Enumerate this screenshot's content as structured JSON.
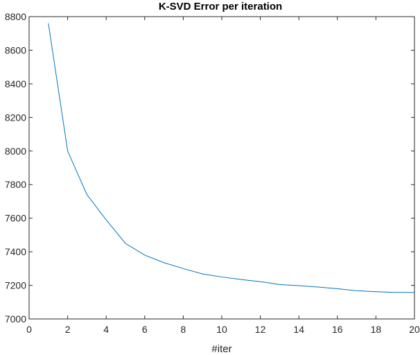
{
  "chart_data": {
    "type": "line",
    "title": "K-SVD Error per iteration",
    "xlabel": "#iter",
    "ylabel": "",
    "xlim": [
      0,
      20
    ],
    "ylim": [
      7000,
      8800
    ],
    "xticks": [
      0,
      2,
      4,
      6,
      8,
      10,
      12,
      14,
      16,
      18,
      20
    ],
    "yticks": [
      7000,
      7200,
      7400,
      7600,
      7800,
      8000,
      8200,
      8400,
      8600,
      8800
    ],
    "grid": false,
    "legend": "none",
    "series": [
      {
        "color": "#0072BD",
        "x": [
          1,
          2,
          3,
          4,
          5,
          6,
          7,
          8,
          9,
          10,
          11,
          12,
          13,
          14,
          15,
          16,
          17,
          18,
          19,
          20
        ],
        "y": [
          8760,
          8000,
          7740,
          7590,
          7450,
          7380,
          7335,
          7300,
          7268,
          7250,
          7235,
          7222,
          7205,
          7198,
          7190,
          7180,
          7168,
          7162,
          7158,
          7158
        ]
      }
    ]
  }
}
